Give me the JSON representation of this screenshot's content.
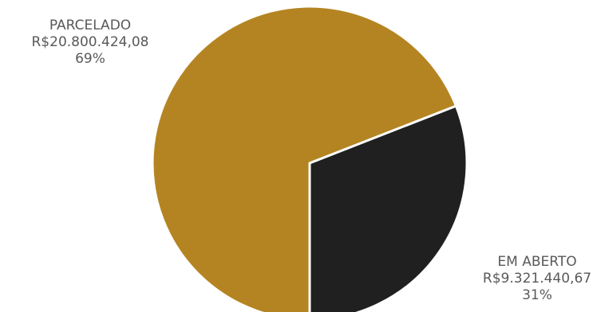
{
  "chart_data": {
    "type": "pie",
    "title": "",
    "slices": [
      {
        "name": "PARCELADO",
        "value": 20800424.08,
        "value_label": "R$20.800.424,08",
        "percent": 69,
        "percent_label": "69%",
        "color": "#b58422"
      },
      {
        "name": "EM ABERTO",
        "value": 9321440.67,
        "value_label": "R$9.321.440,67",
        "percent": 31,
        "percent_label": "31%",
        "color": "#202020"
      }
    ],
    "legend": false,
    "slice_border_color": "#ffffff"
  }
}
